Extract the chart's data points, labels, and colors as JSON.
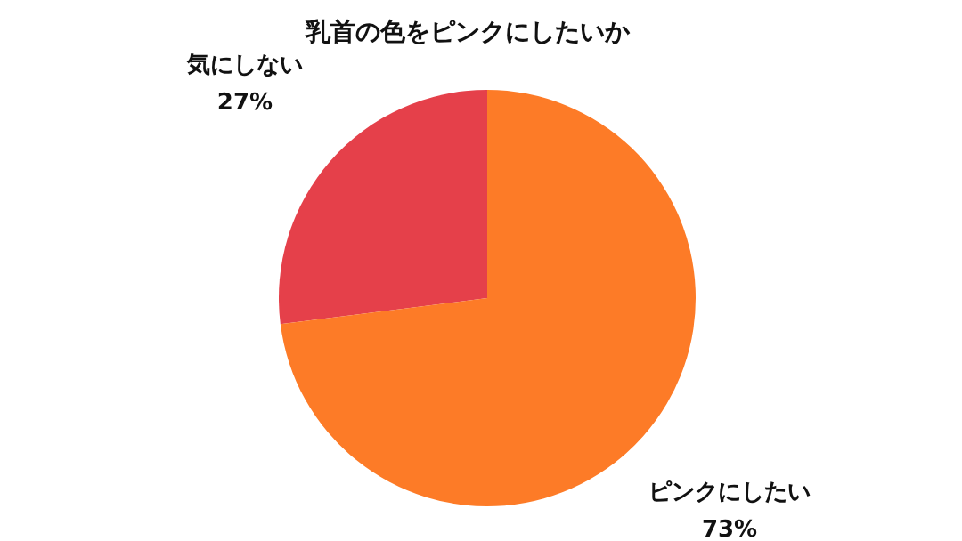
{
  "chart_data": {
    "type": "pie",
    "title": "乳首の色をピンクにしたいか",
    "categories": [
      "気にしない",
      "ピンクにしたい"
    ],
    "values": [
      27,
      73
    ],
    "value_labels": [
      "27%",
      "73%"
    ],
    "colors": [
      "#e5404a",
      "#fd7b27"
    ]
  }
}
